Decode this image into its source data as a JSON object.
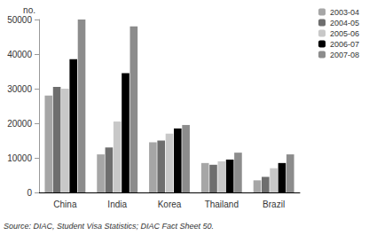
{
  "chart_data": {
    "type": "bar",
    "ylabel": "no.",
    "caption": "Source: DIAC, Student Visa Statistics; DIAC Fact Sheet 50.",
    "categories": [
      "China",
      "India",
      "Korea",
      "Thailand",
      "Brazil"
    ],
    "series": [
      {
        "name": "2003-04",
        "color": "#a6a6a6",
        "values": [
          28000,
          11000,
          14500,
          8500,
          3500
        ]
      },
      {
        "name": "2004-05",
        "color": "#6e6e6e",
        "values": [
          30500,
          13000,
          15000,
          8000,
          4500
        ]
      },
      {
        "name": "2005-06",
        "color": "#c8c8c8",
        "values": [
          30000,
          20500,
          17000,
          9000,
          7000
        ]
      },
      {
        "name": "2006-07",
        "color": "#000000",
        "values": [
          38500,
          34500,
          18500,
          9500,
          8500
        ]
      },
      {
        "name": "2007-08",
        "color": "#8c8c8c",
        "values": [
          50000,
          48000,
          19500,
          11500,
          11000
        ]
      }
    ],
    "ylim": [
      0,
      50000
    ],
    "yticks": [
      0,
      10000,
      20000,
      30000,
      40000,
      50000
    ],
    "grid": false,
    "legend": "top-right"
  }
}
